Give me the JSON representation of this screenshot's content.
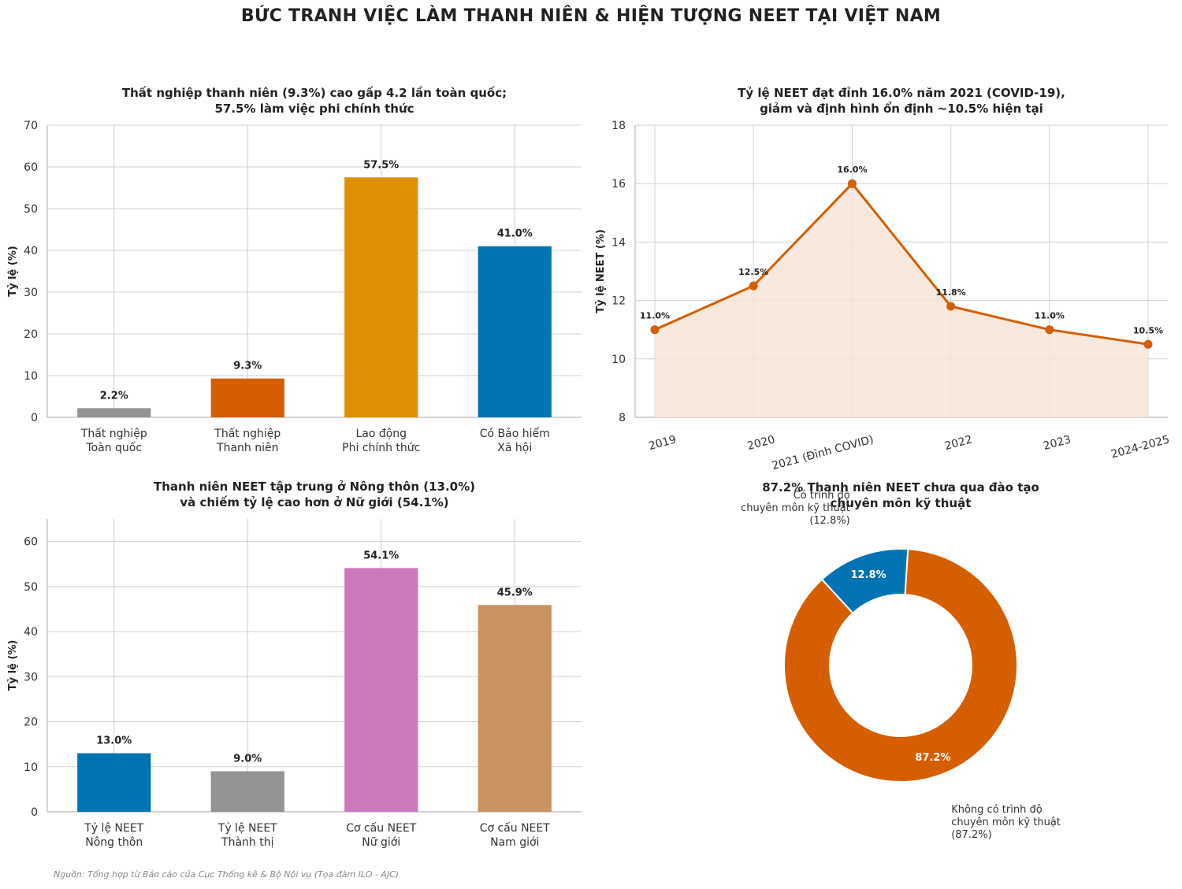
{
  "page_title": "BỨC TRANH VIỆC LÀM THANH NIÊN & HIỆN TƯỢNG NEET TẠI VIỆT NAM",
  "source_note": "Nguồn: Tổng hợp từ Báo cáo của Cục Thống kê & Bộ Nội vụ (Tọa đàm ILO - AJC)",
  "chart_data": [
    {
      "type": "bar",
      "title": [
        "Thất nghiệp thanh niên (9.3%) cao gấp 4.2 lần toàn quốc;",
        "57.5% làm việc phi chính thức"
      ],
      "categories": [
        [
          "Thất nghiệp",
          "Toàn quốc"
        ],
        [
          "Thất nghiệp",
          "Thanh niên"
        ],
        [
          "Lao động",
          "Phi chính thức"
        ],
        [
          "Có Bảo hiểm",
          "Xã hội"
        ]
      ],
      "values": [
        2.2,
        9.3,
        57.5,
        41.0
      ],
      "labels": [
        "2.2%",
        "9.3%",
        "57.5%",
        "41.0%"
      ],
      "colors": [
        "#949494",
        "#d55e00",
        "#de8f05",
        "#0173b2"
      ],
      "ylabel": "Tỷ lệ (%)",
      "ylim": [
        0,
        70
      ],
      "yticks": [
        0,
        10,
        20,
        30,
        40,
        50,
        60,
        70
      ],
      "grid": true
    },
    {
      "type": "line",
      "title": [
        "Tỷ lệ NEET đạt đỉnh 16.0% năm 2021 (COVID-19),",
        "giảm và định hình ổn định ~10.5% hiện tại"
      ],
      "x": [
        "2019",
        "2020",
        "2021 (Đỉnh COVID)",
        "2022",
        "2023",
        "2024-2025"
      ],
      "values": [
        11.0,
        12.5,
        16.0,
        11.8,
        11.0,
        10.5
      ],
      "labels": [
        "11.0%",
        "12.5%",
        "16.0%",
        "11.8%",
        "11.0%",
        "10.5%"
      ],
      "color": "#d55e00",
      "fill": "#f7e4d7",
      "ylabel": "Tỷ lệ NEET (%)",
      "ylim": [
        8,
        18
      ],
      "yticks": [
        8,
        10,
        12,
        14,
        16,
        18
      ],
      "grid": true
    },
    {
      "type": "bar",
      "title": [
        "Thanh niên NEET tập trung ở Nông thôn (13.0%)",
        "và chiếm tỷ lệ cao hơn ở Nữ giới (54.1%)"
      ],
      "categories": [
        [
          "Tỷ lệ NEET",
          "Nông thôn"
        ],
        [
          "Tỷ lệ NEET",
          "Thành thị"
        ],
        [
          "Cơ cấu NEET",
          "Nữ giới"
        ],
        [
          "Cơ cấu NEET",
          "Nam giới"
        ]
      ],
      "values": [
        13.0,
        9.0,
        54.1,
        45.9
      ],
      "labels": [
        "13.0%",
        "9.0%",
        "54.1%",
        "45.9%"
      ],
      "colors": [
        "#0173b2",
        "#949494",
        "#cc78bc",
        "#ca9161"
      ],
      "ylabel": "Tỷ lệ (%)",
      "ylim": [
        0,
        65
      ],
      "yticks": [
        0,
        10,
        20,
        30,
        40,
        50,
        60
      ],
      "grid": true
    },
    {
      "type": "pie",
      "title": [
        "87.2% Thanh niên NEET chưa qua đào tạo",
        "chuyên môn kỹ thuật"
      ],
      "slices": [
        {
          "label": [
            "Có trình độ",
            "chuyên môn kỹ thuật",
            "(12.8%)"
          ],
          "value": 12.8,
          "pct": "12.8%",
          "color": "#0173b2"
        },
        {
          "label": [
            "Không có trình độ",
            "chuyên môn kỹ thuật",
            "(87.2%)"
          ],
          "value": 87.2,
          "pct": "87.2%",
          "color": "#d55e00"
        }
      ]
    }
  ]
}
